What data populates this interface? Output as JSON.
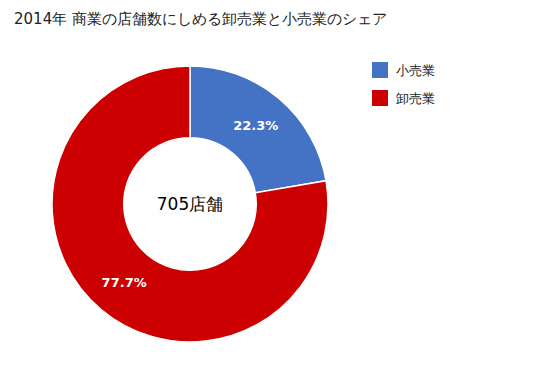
{
  "chart_data": {
    "type": "donut",
    "title": "2014年 商業の店舗数にしめる卸売業と小売業のシェア",
    "annotations": [
      "705店舗"
    ],
    "categories": [
      "小売業",
      "卸売業"
    ],
    "values": [
      22.3,
      77.7
    ],
    "value_labels": [
      "22.3%",
      "77.7%"
    ],
    "colors": [
      "#4472C4",
      "#CC0000"
    ],
    "data_labels": true,
    "legend": "right"
  }
}
